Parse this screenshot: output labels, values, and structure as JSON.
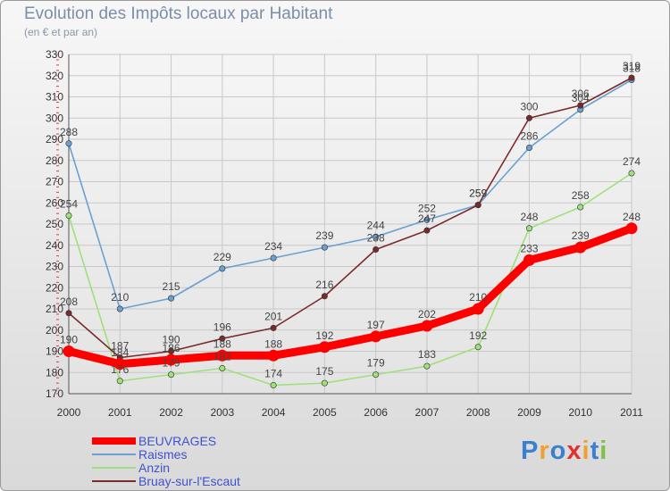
{
  "chart_data": {
    "type": "line",
    "title": "Evolution des Impôts locaux par Habitant",
    "subtitle": "(en € et par an)",
    "x": [
      "2000",
      "2001",
      "2002",
      "2003",
      "2004",
      "2005",
      "2006",
      "2007",
      "2008",
      "2009",
      "2010",
      "2011"
    ],
    "ylim": [
      170,
      330
    ],
    "yticks": [
      170,
      180,
      190,
      200,
      210,
      220,
      230,
      240,
      250,
      260,
      270,
      280,
      290,
      300,
      310,
      320,
      330
    ],
    "grid": true,
    "series": [
      {
        "name": "BEUVRAGES",
        "color": "#ff0000",
        "values": [
          190,
          184,
          186,
          188,
          188,
          192,
          197,
          202,
          210,
          233,
          239,
          248
        ]
      },
      {
        "name": "Raismes",
        "color": "#6aa0d2",
        "values": [
          288,
          210,
          215,
          229,
          234,
          239,
          244,
          252,
          259,
          286,
          304,
          318
        ]
      },
      {
        "name": "Anzin",
        "color": "#9ee07a",
        "values": [
          254,
          176,
          179,
          182,
          174,
          175,
          179,
          183,
          192,
          248,
          258,
          274
        ]
      },
      {
        "name": "Bruay-sur-l'Escaut",
        "color": "#7a2a2a",
        "values": [
          208,
          187,
          190,
          196,
          201,
          216,
          238,
          247,
          259,
          300,
          306,
          319
        ]
      }
    ]
  },
  "logo": {
    "text": "Proxiti"
  }
}
